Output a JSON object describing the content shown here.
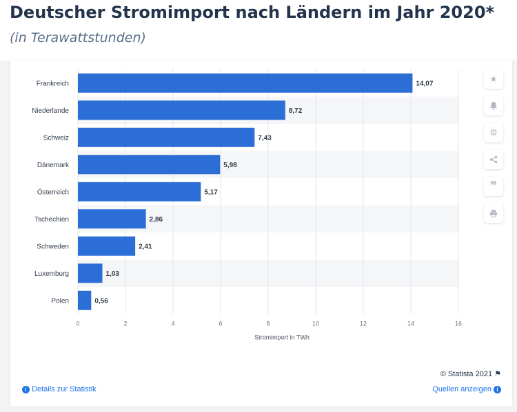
{
  "title": "Deutscher Stromimport nach Ländern im Jahr 2020*",
  "subtitle": "(in Terawattstunden)",
  "chart_data": {
    "type": "bar",
    "orientation": "horizontal",
    "categories": [
      "Frankreich",
      "Niederlande",
      "Schweiz",
      "Dänemark",
      "Österreich",
      "Tschechien",
      "Schweden",
      "Luxemburg",
      "Polen"
    ],
    "values": [
      14.07,
      8.72,
      7.43,
      5.98,
      5.17,
      2.86,
      2.41,
      1.03,
      0.56
    ],
    "value_labels": [
      "14,07",
      "8,72",
      "7,43",
      "5,98",
      "5,17",
      "2,86",
      "2,41",
      "1,03",
      "0,56"
    ],
    "xlabel": "Stromimport in TWh",
    "ylabel": "",
    "xlim": [
      0,
      16
    ],
    "x_ticks": [
      0,
      2,
      4,
      6,
      8,
      10,
      12,
      14,
      16
    ],
    "grid": "vertical",
    "bar_color": "#2b6fd6"
  },
  "tools": [
    "star-icon",
    "bell-icon",
    "gear-icon",
    "share-icon",
    "quote-icon",
    "print-icon"
  ],
  "footer": {
    "source": "© Statista 2021",
    "details_link": "Details zur Statistik",
    "sources_link": "Quellen anzeigen"
  }
}
